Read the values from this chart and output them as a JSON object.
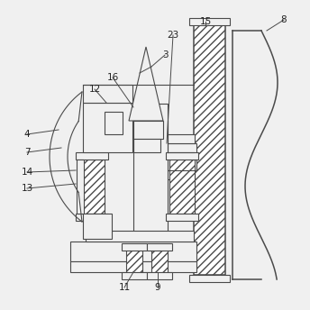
{
  "background_color": "#f0f0f0",
  "line_color": "#4a4a4a",
  "figsize": [
    3.44,
    3.44
  ],
  "dpi": 100,
  "label_fs": 7.5
}
